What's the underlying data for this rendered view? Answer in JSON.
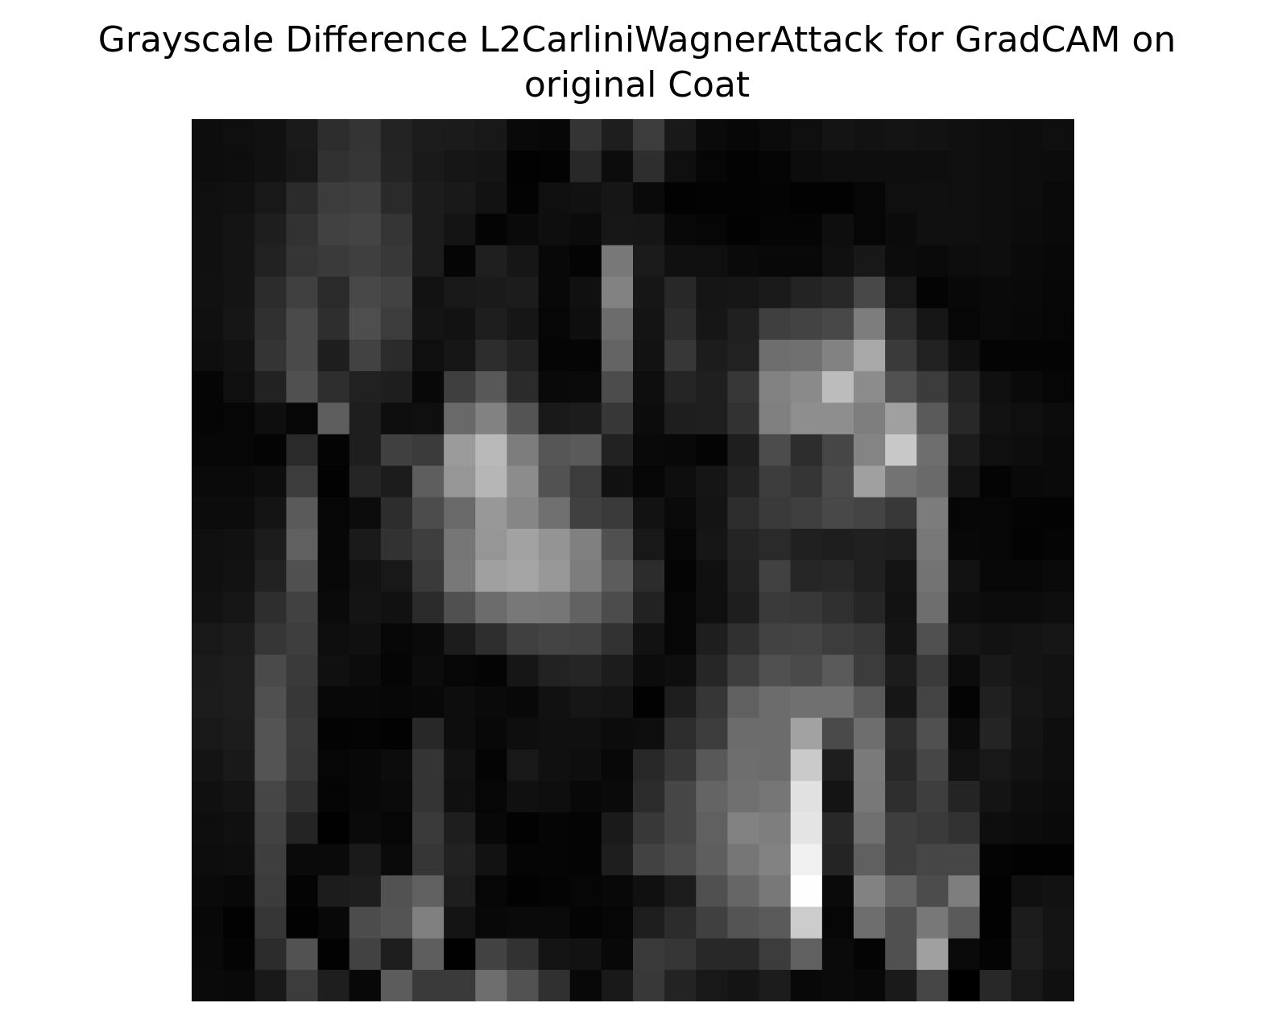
{
  "chart_data": {
    "type": "heatmap",
    "title": "Grayscale Difference L2CarliniWagnerAttack for GradCAM on\noriginal Coat",
    "xlabel": "",
    "ylabel": "",
    "axes": "off",
    "colormap": "gray",
    "rows": 28,
    "cols": 28,
    "values": [
      [
        13,
        15,
        17,
        26,
        45,
        52,
        35,
        28,
        27,
        24,
        9,
        7,
        52,
        30,
        60,
        25,
        10,
        7,
        11,
        15,
        20,
        18,
        20,
        18,
        16,
        14,
        13,
        15
      ],
      [
        13,
        14,
        17,
        24,
        49,
        54,
        36,
        26,
        22,
        20,
        2,
        3,
        40,
        12,
        46,
        15,
        6,
        3,
        5,
        12,
        14,
        14,
        14,
        14,
        15,
        14,
        13,
        12
      ],
      [
        15,
        17,
        24,
        43,
        60,
        63,
        42,
        28,
        25,
        18,
        3,
        15,
        17,
        22,
        10,
        2,
        3,
        3,
        4,
        2,
        2,
        6,
        15,
        16,
        15,
        14,
        13,
        10
      ],
      [
        16,
        20,
        30,
        50,
        65,
        68,
        53,
        28,
        20,
        4,
        10,
        14,
        11,
        23,
        22,
        8,
        6,
        2,
        5,
        5,
        14,
        6,
        11,
        16,
        16,
        14,
        12,
        10
      ],
      [
        16,
        20,
        34,
        53,
        58,
        63,
        56,
        28,
        5,
        31,
        22,
        8,
        4,
        120,
        27,
        16,
        15,
        10,
        8,
        8,
        16,
        24,
        12,
        10,
        13,
        14,
        10,
        8
      ],
      [
        17,
        20,
        44,
        64,
        42,
        72,
        66,
        18,
        24,
        26,
        28,
        8,
        16,
        130,
        22,
        40,
        21,
        22,
        26,
        35,
        40,
        72,
        24,
        4,
        8,
        10,
        9,
        7
      ],
      [
        16,
        22,
        48,
        74,
        46,
        78,
        60,
        20,
        18,
        30,
        22,
        6,
        14,
        108,
        20,
        45,
        22,
        32,
        63,
        67,
        72,
        125,
        45,
        22,
        6,
        10,
        8,
        6
      ],
      [
        14,
        18,
        52,
        74,
        30,
        66,
        43,
        15,
        22,
        45,
        34,
        5,
        5,
        100,
        18,
        55,
        28,
        33,
        110,
        112,
        130,
        168,
        58,
        33,
        16,
        4,
        4,
        4
      ],
      [
        5,
        15,
        34,
        80,
        46,
        33,
        30,
        8,
        63,
        88,
        43,
        9,
        10,
        76,
        14,
        37,
        31,
        55,
        130,
        138,
        188,
        140,
        81,
        60,
        35,
        15,
        10,
        6
      ],
      [
        5,
        6,
        14,
        6,
        94,
        30,
        14,
        15,
        105,
        130,
        84,
        25,
        28,
        55,
        12,
        30,
        31,
        50,
        128,
        142,
        142,
        126,
        160,
        90,
        40,
        18,
        15,
        12
      ],
      [
        6,
        6,
        4,
        42,
        4,
        30,
        64,
        59,
        155,
        185,
        125,
        86,
        90,
        34,
        9,
        8,
        4,
        30,
        76,
        45,
        70,
        132,
        200,
        110,
        28,
        15,
        13,
        10
      ],
      [
        10,
        10,
        13,
        60,
        2,
        37,
        28,
        94,
        150,
        182,
        140,
        82,
        60,
        17,
        6,
        14,
        21,
        35,
        60,
        53,
        75,
        160,
        115,
        106,
        20,
        4,
        9,
        10
      ],
      [
        12,
        12,
        20,
        90,
        6,
        12,
        45,
        76,
        105,
        152,
        134,
        112,
        64,
        58,
        18,
        10,
        20,
        45,
        58,
        63,
        72,
        68,
        56,
        124,
        6,
        6,
        4,
        3
      ],
      [
        15,
        17,
        28,
        96,
        7,
        26,
        50,
        62,
        118,
        150,
        162,
        148,
        128,
        80,
        24,
        6,
        22,
        36,
        42,
        32,
        30,
        32,
        30,
        120,
        8,
        7,
        3,
        5
      ],
      [
        16,
        18,
        34,
        80,
        8,
        18,
        24,
        58,
        120,
        160,
        165,
        152,
        125,
        92,
        44,
        4,
        16,
        34,
        65,
        38,
        40,
        32,
        20,
        115,
        18,
        8,
        8,
        10
      ],
      [
        18,
        22,
        46,
        65,
        10,
        20,
        17,
        42,
        80,
        108,
        120,
        118,
        98,
        76,
        34,
        6,
        15,
        30,
        58,
        56,
        48,
        38,
        18,
        110,
        14,
        12,
        12,
        14
      ],
      [
        24,
        28,
        54,
        62,
        14,
        16,
        6,
        10,
        28,
        46,
        64,
        68,
        66,
        50,
        18,
        6,
        30,
        48,
        66,
        68,
        60,
        56,
        20,
        80,
        22,
        18,
        20,
        22
      ],
      [
        27,
        30,
        74,
        58,
        16,
        12,
        5,
        12,
        6,
        4,
        22,
        34,
        37,
        28,
        12,
        14,
        38,
        62,
        80,
        74,
        90,
        60,
        28,
        58,
        12,
        25,
        20,
        18
      ],
      [
        28,
        30,
        80,
        55,
        8,
        8,
        7,
        8,
        13,
        10,
        8,
        17,
        22,
        20,
        2,
        30,
        54,
        96,
        108,
        112,
        112,
        90,
        22,
        68,
        4,
        32,
        22,
        18
      ],
      [
        24,
        28,
        84,
        58,
        3,
        4,
        2,
        40,
        13,
        8,
        14,
        16,
        16,
        12,
        14,
        45,
        60,
        108,
        108,
        162,
        74,
        110,
        45,
        80,
        12,
        36,
        20,
        14
      ],
      [
        20,
        25,
        84,
        56,
        6,
        8,
        12,
        52,
        18,
        4,
        24,
        16,
        14,
        8,
        40,
        55,
        88,
        110,
        108,
        202,
        30,
        122,
        40,
        70,
        18,
        24,
        18,
        14
      ],
      [
        16,
        20,
        70,
        48,
        5,
        8,
        10,
        52,
        16,
        6,
        16,
        14,
        8,
        10,
        44,
        70,
        100,
        112,
        118,
        225,
        20,
        120,
        46,
        62,
        36,
        20,
        14,
        12
      ],
      [
        14,
        16,
        66,
        36,
        1,
        10,
        6,
        58,
        30,
        8,
        2,
        5,
        4,
        26,
        56,
        70,
        96,
        130,
        126,
        228,
        40,
        112,
        62,
        58,
        50,
        14,
        12,
        10
      ],
      [
        13,
        14,
        62,
        10,
        10,
        26,
        10,
        54,
        34,
        18,
        5,
        5,
        4,
        30,
        66,
        76,
        94,
        118,
        130,
        240,
        36,
        96,
        62,
        70,
        70,
        4,
        2,
        2
      ],
      [
        10,
        8,
        60,
        4,
        28,
        30,
        82,
        96,
        30,
        6,
        2,
        4,
        6,
        8,
        16,
        28,
        80,
        102,
        120,
        254,
        10,
        130,
        100,
        76,
        126,
        2,
        16,
        18
      ],
      [
        8,
        2,
        54,
        2,
        8,
        76,
        84,
        128,
        20,
        8,
        10,
        10,
        4,
        6,
        30,
        44,
        64,
        84,
        90,
        204,
        6,
        110,
        80,
        120,
        90,
        2,
        28,
        20
      ],
      [
        9,
        4,
        44,
        82,
        2,
        66,
        30,
        94,
        1,
        66,
        50,
        20,
        18,
        8,
        58,
        54,
        40,
        40,
        60,
        96,
        10,
        4,
        80,
        160,
        10,
        4,
        30,
        20
      ],
      [
        10,
        9,
        25,
        60,
        30,
        8,
        92,
        58,
        58,
        110,
        82,
        48,
        8,
        25,
        56,
        35,
        24,
        20,
        28,
        8,
        10,
        8,
        26,
        70,
        0,
        40,
        24,
        16
      ]
    ]
  }
}
